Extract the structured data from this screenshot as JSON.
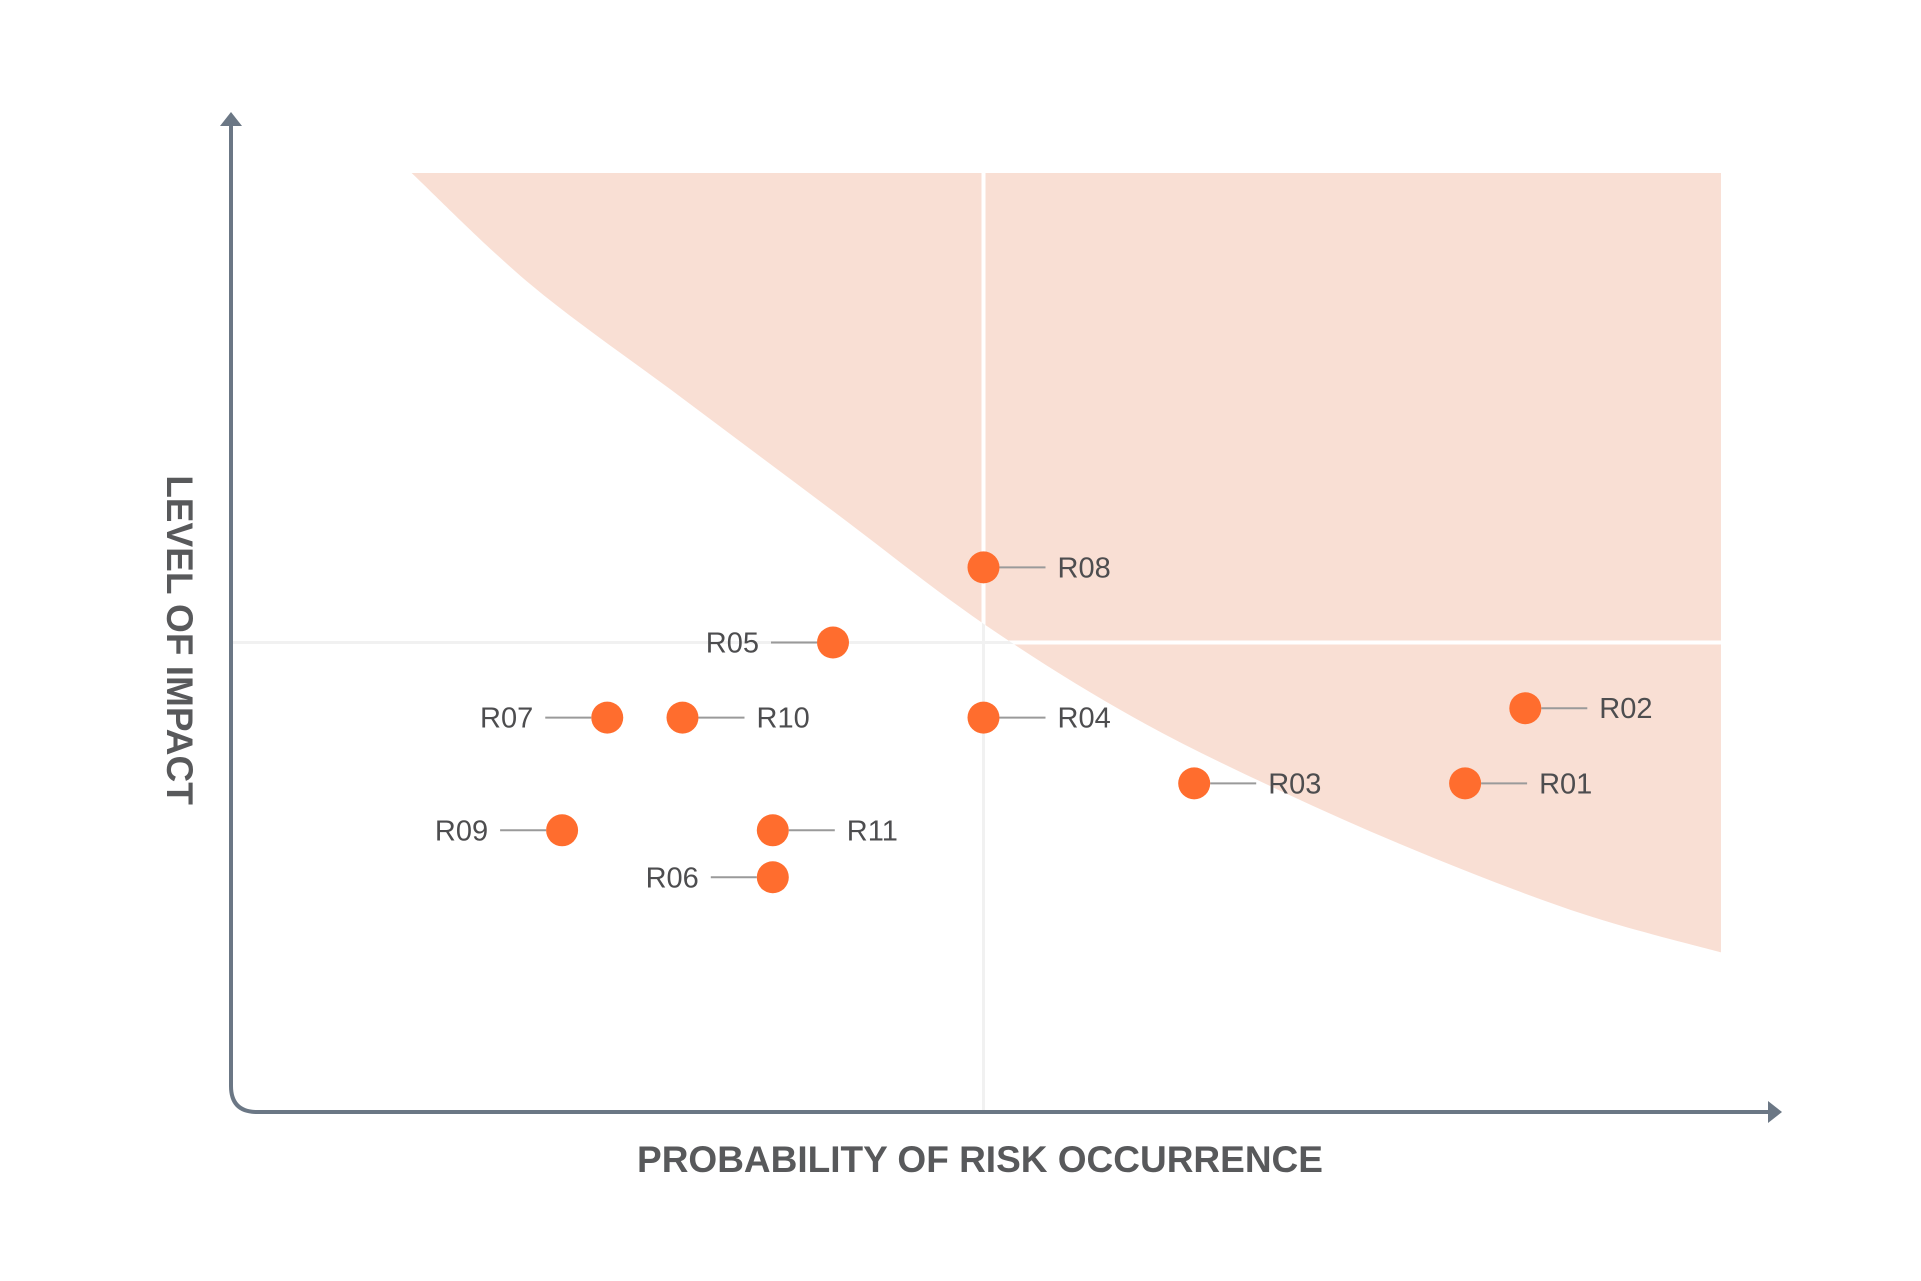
{
  "chart_data": {
    "type": "scatter",
    "title": "",
    "xlabel": "PROBABILITY OF RISK OCCURRENCE",
    "ylabel": "LEVEL OF IMPACT",
    "xlim": [
      0,
      1
    ],
    "ylim": [
      0,
      1
    ],
    "quadrant_divider": {
      "x": 0.5,
      "y": 0.5
    },
    "grid": false,
    "legend": "none",
    "tick_labels": false,
    "colors": {
      "point": "#ff6d2e",
      "risk_zone": "#f9dfd4",
      "axis": "#6b7785",
      "divider": "#ffffff",
      "leader_line": "#9a9a9a"
    },
    "risk_zone_boundary": {
      "x": [
        0.12,
        0.2,
        0.3,
        0.4,
        0.5,
        0.6,
        0.7,
        0.8,
        0.9,
        0.99
      ],
      "y": [
        1.0,
        0.88,
        0.76,
        0.64,
        0.52,
        0.42,
        0.34,
        0.27,
        0.21,
        0.17
      ]
    },
    "points": [
      {
        "label": "R01",
        "x": 0.82,
        "y": 0.35,
        "label_side": "right"
      },
      {
        "label": "R02",
        "x": 0.86,
        "y": 0.43,
        "label_side": "right"
      },
      {
        "label": "R03",
        "x": 0.64,
        "y": 0.35,
        "label_side": "right"
      },
      {
        "label": "R04",
        "x": 0.5,
        "y": 0.42,
        "label_side": "right"
      },
      {
        "label": "R05",
        "x": 0.4,
        "y": 0.5,
        "label_side": "left"
      },
      {
        "label": "R06",
        "x": 0.36,
        "y": 0.25,
        "label_side": "left"
      },
      {
        "label": "R07",
        "x": 0.25,
        "y": 0.42,
        "label_side": "left"
      },
      {
        "label": "R08",
        "x": 0.5,
        "y": 0.58,
        "label_side": "right"
      },
      {
        "label": "R09",
        "x": 0.22,
        "y": 0.3,
        "label_side": "left"
      },
      {
        "label": "R10",
        "x": 0.3,
        "y": 0.42,
        "label_side": "right"
      },
      {
        "label": "R11",
        "x": 0.36,
        "y": 0.3,
        "label_side": "right"
      }
    ]
  }
}
